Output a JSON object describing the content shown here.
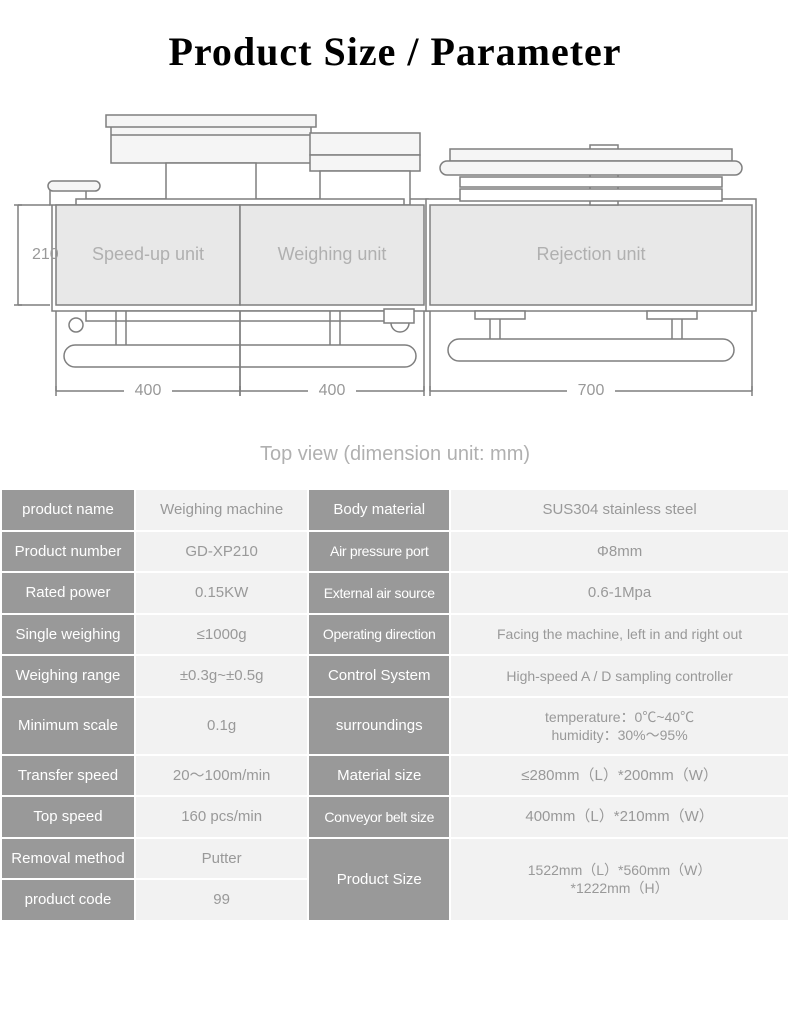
{
  "title": "Product Size / Parameter",
  "caption": "Top view (dimension unit: mm)",
  "diagram": {
    "height_label": "210",
    "units": [
      {
        "label": "Speed-up unit",
        "width_label": "400"
      },
      {
        "label": "Weighing unit",
        "width_label": "400"
      },
      {
        "label": "Rejection unit",
        "width_label": "700"
      }
    ],
    "colors": {
      "stroke": "#7f7f7f",
      "fill_main": "#e8e8e8",
      "fill_light": "#f5f5f5",
      "text": "#b0b0b0",
      "dim_text": "#999999"
    }
  },
  "params": {
    "header_bg": "#999999",
    "header_fg": "#ffffff",
    "value_bg": "#f2f2f2",
    "value_fg": "#999999",
    "rows": [
      [
        {
          "h": "product name",
          "v": "Weighing machine"
        },
        {
          "h": "Body material",
          "v": "SUS304 stainless steel"
        }
      ],
      [
        {
          "h": "Product number",
          "v": "GD-XP210"
        },
        {
          "h": "Air pressure port",
          "v": "Φ8mm"
        }
      ],
      [
        {
          "h": "Rated power",
          "v": "0.15KW"
        },
        {
          "h": "External air source",
          "v": "0.6-1Mpa"
        }
      ],
      [
        {
          "h": "Single weighing",
          "v": "≤1000g"
        },
        {
          "h": "Operating direction",
          "v": "Facing the machine, left in and right out"
        }
      ],
      [
        {
          "h": "Weighing range",
          "v": "±0.3g~±0.5g"
        },
        {
          "h": "Control System",
          "v": "High-speed A / D sampling controller"
        }
      ],
      [
        {
          "h": "Minimum scale",
          "v": "0.1g"
        },
        {
          "h": "surroundings",
          "v": "temperature：0℃~40℃\nhumidity：30%～95%"
        }
      ],
      [
        {
          "h": "Transfer speed",
          "v": "20～100m/min"
        },
        {
          "h": "Material size",
          "v": "≤280mm（L）*200mm（W）"
        }
      ],
      [
        {
          "h": "Top speed",
          "v": "160  pcs/min"
        },
        {
          "h": "Conveyor belt size",
          "v": "400mm（L）*210mm（W）"
        }
      ],
      [
        {
          "h": "Removal method",
          "v": "Putter"
        },
        {
          "h": "Product Size",
          "v": "1522mm（L）*560mm（W）\n*1222mm（H）",
          "rowspan": 2
        }
      ],
      [
        {
          "h": "product code",
          "v": "99"
        }
      ]
    ]
  }
}
